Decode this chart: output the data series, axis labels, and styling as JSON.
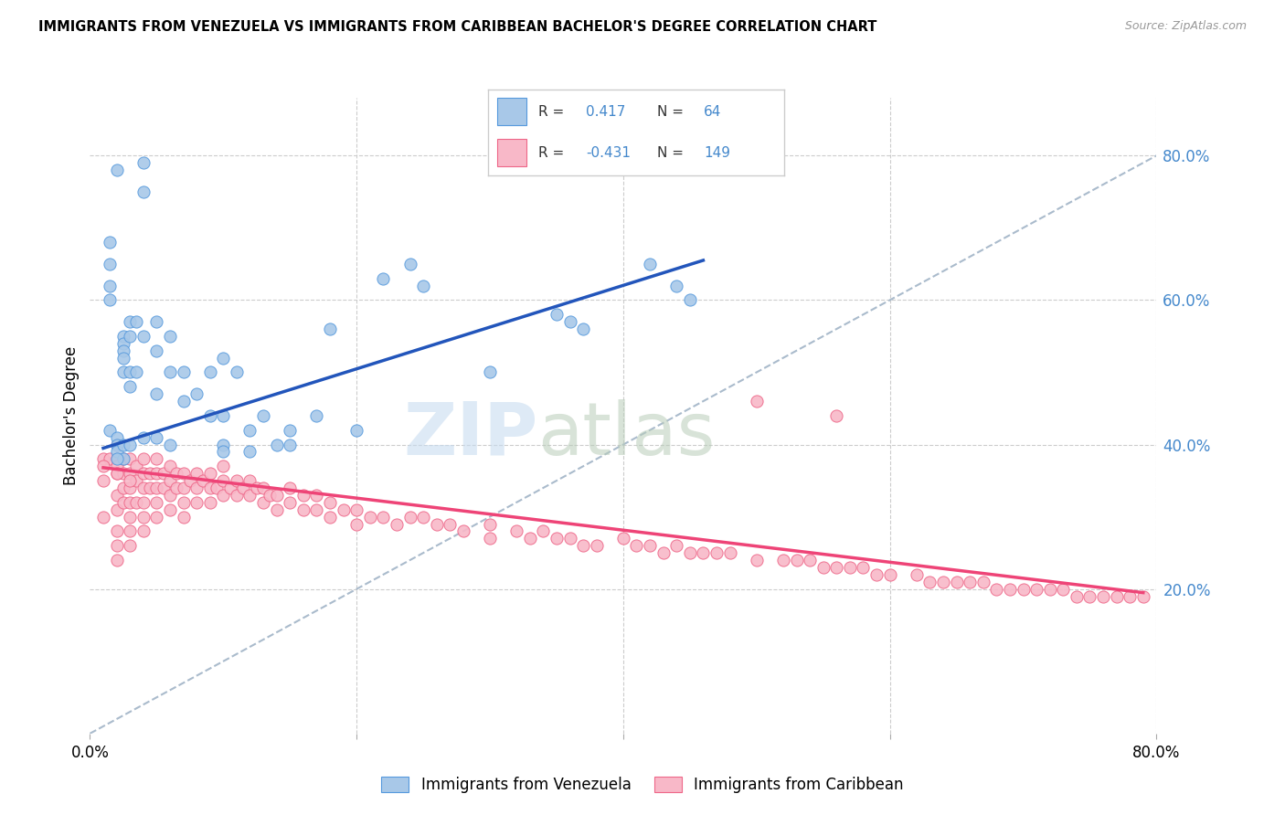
{
  "title": "IMMIGRANTS FROM VENEZUELA VS IMMIGRANTS FROM CARIBBEAN BACHELOR'S DEGREE CORRELATION CHART",
  "source": "Source: ZipAtlas.com",
  "ylabel": "Bachelor's Degree",
  "right_yticks": [
    "20.0%",
    "40.0%",
    "60.0%",
    "80.0%"
  ],
  "right_ytick_vals": [
    0.2,
    0.4,
    0.6,
    0.8
  ],
  "xmin": 0.0,
  "xmax": 0.8,
  "ymin": 0.0,
  "ymax": 0.88,
  "color_blue_fill": "#A8C8E8",
  "color_blue_edge": "#5599DD",
  "color_pink_fill": "#F8B8C8",
  "color_pink_edge": "#EE6688",
  "color_blue_line": "#2255BB",
  "color_pink_line": "#EE4477",
  "color_dash_line": "#AABBCC",
  "color_right_tick": "#4488CC",
  "legend_label_blue": "Immigrants from Venezuela",
  "legend_label_pink": "Immigrants from Caribbean",
  "venezuela_x": [
    0.02,
    0.04,
    0.04,
    0.015,
    0.015,
    0.015,
    0.015,
    0.025,
    0.025,
    0.025,
    0.025,
    0.025,
    0.03,
    0.03,
    0.03,
    0.03,
    0.035,
    0.035,
    0.04,
    0.05,
    0.05,
    0.05,
    0.06,
    0.06,
    0.07,
    0.07,
    0.08,
    0.09,
    0.09,
    0.1,
    0.1,
    0.11,
    0.12,
    0.13,
    0.14,
    0.15,
    0.17,
    0.18,
    0.22,
    0.24,
    0.25,
    0.3,
    0.35,
    0.36,
    0.37,
    0.42,
    0.44,
    0.45,
    0.015,
    0.02,
    0.02,
    0.02,
    0.025,
    0.03,
    0.04,
    0.05,
    0.06,
    0.1,
    0.1,
    0.12,
    0.15,
    0.2,
    0.025,
    0.02
  ],
  "venezuela_y": [
    0.78,
    0.79,
    0.75,
    0.68,
    0.65,
    0.62,
    0.6,
    0.55,
    0.54,
    0.53,
    0.52,
    0.5,
    0.57,
    0.55,
    0.5,
    0.48,
    0.57,
    0.5,
    0.55,
    0.57,
    0.53,
    0.47,
    0.55,
    0.5,
    0.5,
    0.46,
    0.47,
    0.5,
    0.44,
    0.52,
    0.44,
    0.5,
    0.42,
    0.44,
    0.4,
    0.42,
    0.44,
    0.56,
    0.63,
    0.65,
    0.62,
    0.5,
    0.58,
    0.57,
    0.56,
    0.65,
    0.62,
    0.6,
    0.42,
    0.41,
    0.4,
    0.39,
    0.4,
    0.4,
    0.41,
    0.41,
    0.4,
    0.4,
    0.39,
    0.39,
    0.4,
    0.42,
    0.38,
    0.38
  ],
  "caribbean_x": [
    0.01,
    0.01,
    0.01,
    0.015,
    0.02,
    0.02,
    0.02,
    0.02,
    0.02,
    0.02,
    0.02,
    0.02,
    0.02,
    0.025,
    0.025,
    0.025,
    0.025,
    0.03,
    0.03,
    0.03,
    0.03,
    0.03,
    0.03,
    0.03,
    0.035,
    0.035,
    0.035,
    0.04,
    0.04,
    0.04,
    0.04,
    0.04,
    0.04,
    0.045,
    0.045,
    0.05,
    0.05,
    0.05,
    0.05,
    0.05,
    0.055,
    0.055,
    0.06,
    0.06,
    0.06,
    0.06,
    0.065,
    0.065,
    0.07,
    0.07,
    0.07,
    0.07,
    0.075,
    0.08,
    0.08,
    0.08,
    0.085,
    0.09,
    0.09,
    0.09,
    0.095,
    0.1,
    0.1,
    0.1,
    0.105,
    0.11,
    0.11,
    0.115,
    0.12,
    0.12,
    0.125,
    0.13,
    0.13,
    0.135,
    0.14,
    0.14,
    0.15,
    0.15,
    0.16,
    0.16,
    0.17,
    0.17,
    0.18,
    0.18,
    0.19,
    0.2,
    0.2,
    0.21,
    0.22,
    0.23,
    0.24,
    0.25,
    0.26,
    0.27,
    0.28,
    0.3,
    0.3,
    0.32,
    0.33,
    0.34,
    0.35,
    0.36,
    0.37,
    0.38,
    0.4,
    0.41,
    0.42,
    0.43,
    0.44,
    0.45,
    0.46,
    0.47,
    0.48,
    0.5,
    0.52,
    0.53,
    0.54,
    0.55,
    0.56,
    0.57,
    0.58,
    0.59,
    0.6,
    0.62,
    0.63,
    0.64,
    0.65,
    0.66,
    0.67,
    0.68,
    0.69,
    0.7,
    0.71,
    0.72,
    0.73,
    0.74,
    0.75,
    0.76,
    0.77,
    0.78,
    0.79,
    0.5,
    0.56,
    0.01,
    0.02,
    0.03
  ],
  "caribbean_y": [
    0.38,
    0.35,
    0.3,
    0.38,
    0.4,
    0.38,
    0.37,
    0.36,
    0.33,
    0.31,
    0.28,
    0.26,
    0.24,
    0.38,
    0.36,
    0.34,
    0.32,
    0.38,
    0.36,
    0.34,
    0.32,
    0.3,
    0.28,
    0.26,
    0.37,
    0.35,
    0.32,
    0.38,
    0.36,
    0.34,
    0.32,
    0.3,
    0.28,
    0.36,
    0.34,
    0.38,
    0.36,
    0.34,
    0.32,
    0.3,
    0.36,
    0.34,
    0.37,
    0.35,
    0.33,
    0.31,
    0.36,
    0.34,
    0.36,
    0.34,
    0.32,
    0.3,
    0.35,
    0.36,
    0.34,
    0.32,
    0.35,
    0.36,
    0.34,
    0.32,
    0.34,
    0.37,
    0.35,
    0.33,
    0.34,
    0.35,
    0.33,
    0.34,
    0.35,
    0.33,
    0.34,
    0.34,
    0.32,
    0.33,
    0.33,
    0.31,
    0.34,
    0.32,
    0.33,
    0.31,
    0.33,
    0.31,
    0.32,
    0.3,
    0.31,
    0.31,
    0.29,
    0.3,
    0.3,
    0.29,
    0.3,
    0.3,
    0.29,
    0.29,
    0.28,
    0.29,
    0.27,
    0.28,
    0.27,
    0.28,
    0.27,
    0.27,
    0.26,
    0.26,
    0.27,
    0.26,
    0.26,
    0.25,
    0.26,
    0.25,
    0.25,
    0.25,
    0.25,
    0.24,
    0.24,
    0.24,
    0.24,
    0.23,
    0.23,
    0.23,
    0.23,
    0.22,
    0.22,
    0.22,
    0.21,
    0.21,
    0.21,
    0.21,
    0.21,
    0.2,
    0.2,
    0.2,
    0.2,
    0.2,
    0.2,
    0.19,
    0.19,
    0.19,
    0.19,
    0.19,
    0.19,
    0.46,
    0.44,
    0.37,
    0.36,
    0.35
  ],
  "blue_line_x0": 0.01,
  "blue_line_x1": 0.46,
  "blue_line_y0": 0.395,
  "blue_line_y1": 0.655,
  "pink_line_x0": 0.01,
  "pink_line_x1": 0.79,
  "pink_line_y0": 0.368,
  "pink_line_y1": 0.195
}
